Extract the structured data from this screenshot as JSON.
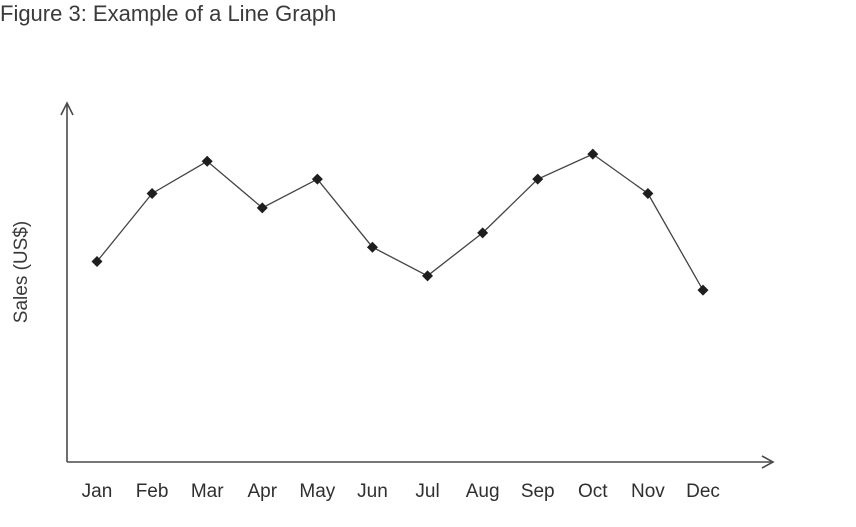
{
  "figure": {
    "caption": "Figure 3: Example of a Line Graph"
  },
  "chart_data": {
    "type": "line",
    "title": "",
    "xlabel": "",
    "ylabel": "Sales (US$)",
    "categories": [
      "Jan",
      "Feb",
      "Mar",
      "Apr",
      "May",
      "Jun",
      "Jul",
      "Aug",
      "Sep",
      "Oct",
      "Nov",
      "Dec"
    ],
    "series": [
      {
        "values": [
          56,
          75,
          84,
          71,
          79,
          60,
          52,
          64,
          79,
          86,
          75,
          48
        ],
        "color": "#444444"
      }
    ],
    "ylim": [
      0,
      100
    ],
    "grid": false,
    "legend": "none",
    "marker": "diamond",
    "y_tick_labels": false
  }
}
